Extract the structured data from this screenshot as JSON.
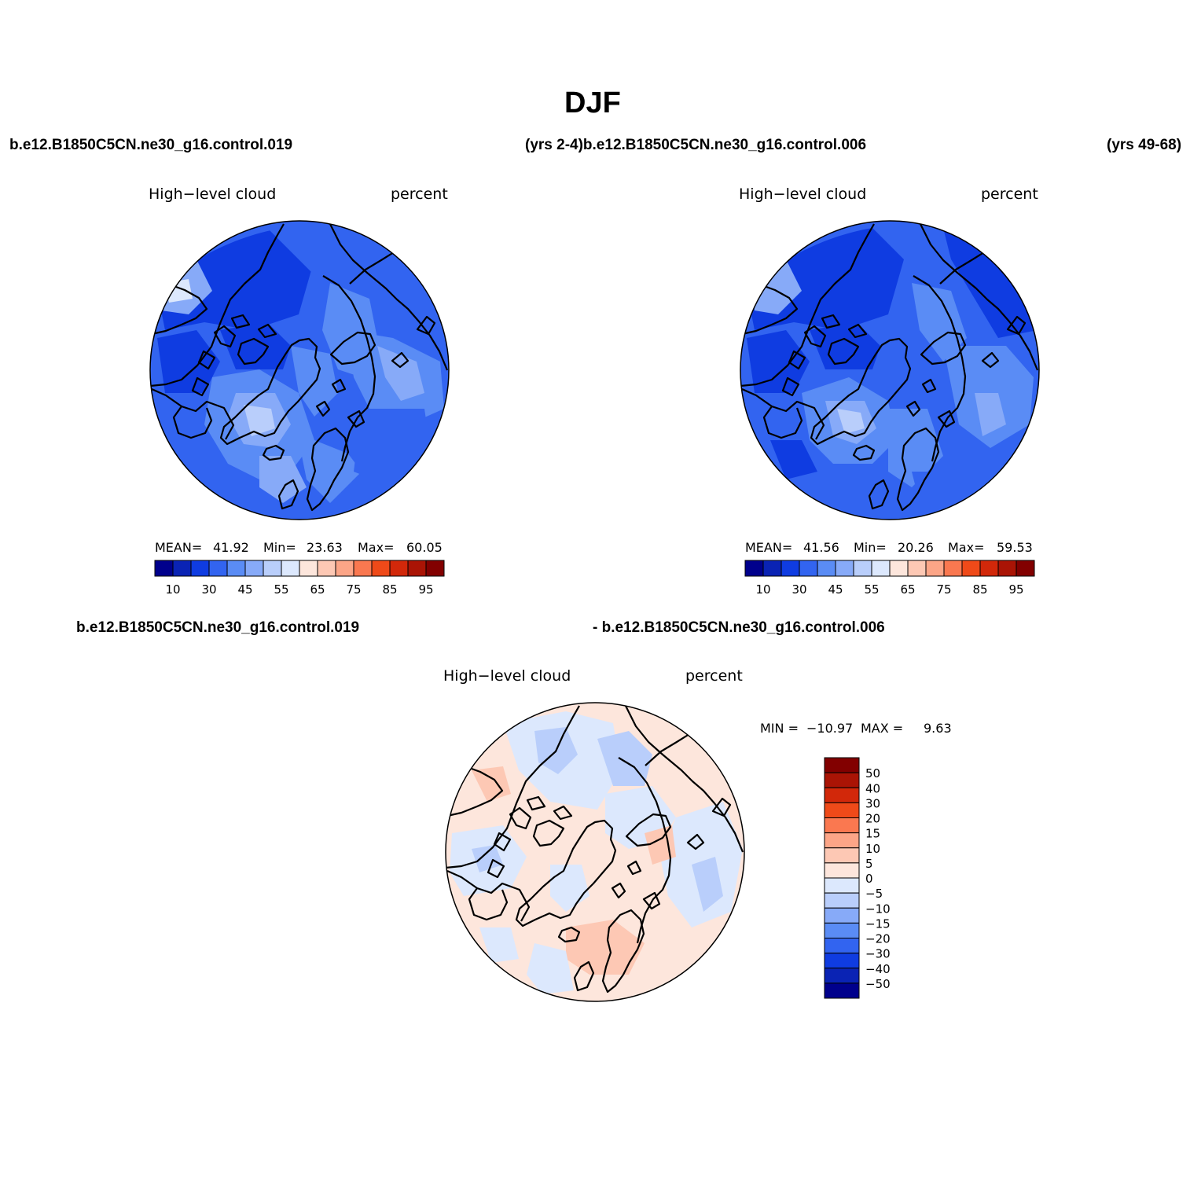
{
  "page": {
    "title": "DJF"
  },
  "headers": {
    "case_top_left": "b.e12.B1850C5CN.ne30_g16.control.019",
    "case_top_mid": "(yrs 2-4)b.e12.B1850C5CN.ne30_g16.control.006",
    "case_top_right": "(yrs 49-68)",
    "case_diff_left": "b.e12.B1850C5CN.ne30_g16.control.019",
    "case_diff_right": "- b.e12.B1850C5CN.ne30_g16.control.006"
  },
  "panels": {
    "left": {
      "variable": "High−level cloud",
      "units": "percent",
      "stats": {
        "mean_label": "MEAN=",
        "mean": "41.92",
        "min_label": "Min=",
        "min": "23.63",
        "max_label": "Max=",
        "max": "60.05"
      }
    },
    "right": {
      "variable": "High−level cloud",
      "units": "percent",
      "stats": {
        "mean_label": "MEAN=",
        "mean": "41.56",
        "min_label": "Min=",
        "min": "20.26",
        "max_label": "Max=",
        "max": "59.53"
      }
    },
    "diff": {
      "variable": "High−level cloud",
      "units": "percent",
      "stats": {
        "min_label": "MIN =",
        "min": "−10.97",
        "max_label": "MAX =",
        "max": "9.63"
      }
    }
  },
  "colors": {
    "abs_scale": [
      "#00008c",
      "#0a23b4",
      "#0f3ce1",
      "#3264f0",
      "#5a8cf5",
      "#87aaf8",
      "#b9cefb",
      "#dce8fd",
      "#fde6dc",
      "#fdc8b4",
      "#fca587",
      "#fa7850",
      "#ef4a19",
      "#d2280a",
      "#aa1405",
      "#820000"
    ],
    "diff_scale": [
      "#00008c",
      "#0a23b4",
      "#0f3ce1",
      "#3264f0",
      "#5a8cf5",
      "#87aaf8",
      "#b9cefb",
      "#dce8fd",
      "#fde6dc",
      "#fdc8b4",
      "#fca587",
      "#fa7850",
      "#ef4a19",
      "#d2280a",
      "#aa1405",
      "#820000"
    ]
  },
  "colorbars": {
    "abs_ticks": [
      "10",
      "30",
      "45",
      "55",
      "65",
      "75",
      "85",
      "95"
    ],
    "diff_ticks": [
      "50",
      "40",
      "30",
      "20",
      "15",
      "10",
      "5",
      "0",
      "−5",
      "−10",
      "−15",
      "−20",
      "−30",
      "−40",
      "−50"
    ]
  },
  "map": {
    "projection": "north polar stereographic",
    "region": "Arctic"
  }
}
